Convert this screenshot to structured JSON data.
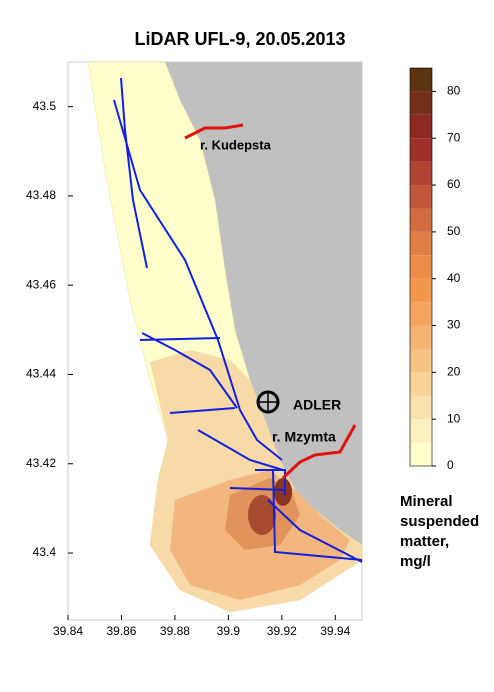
{
  "chart_data": {
    "type": "map",
    "title": "LiDAR UFL-9,  20.05.2013",
    "xlim": [
      39.84,
      39.95
    ],
    "xticks": [
      39.84,
      39.86,
      39.88,
      39.9,
      39.92,
      39.94
    ],
    "ylim": [
      43.385,
      43.51
    ],
    "yticks": [
      43.4,
      43.42,
      43.44,
      43.46,
      43.48,
      43.5
    ],
    "annotations": [
      "r. Kudepsta",
      "ADLER",
      "r. Mzymta"
    ],
    "colorbar": {
      "lim": [
        0,
        85
      ],
      "ticks": [
        0,
        10,
        20,
        30,
        40,
        50,
        60,
        70,
        80
      ],
      "label": [
        "Mineral",
        "suspended",
        "matter,",
        "mg/l"
      ],
      "colors": [
        "#ffffcc",
        "#fdf0c0",
        "#fbe2ad",
        "#f9d398",
        "#f7c384",
        "#f6b371",
        "#f5a35e",
        "#f2984e",
        "#eb8d48",
        "#df7f45",
        "#d26c40",
        "#c2563a",
        "#b24232",
        "#a02f2a",
        "#8c2920",
        "#74301a",
        "#5c3410"
      ]
    }
  }
}
